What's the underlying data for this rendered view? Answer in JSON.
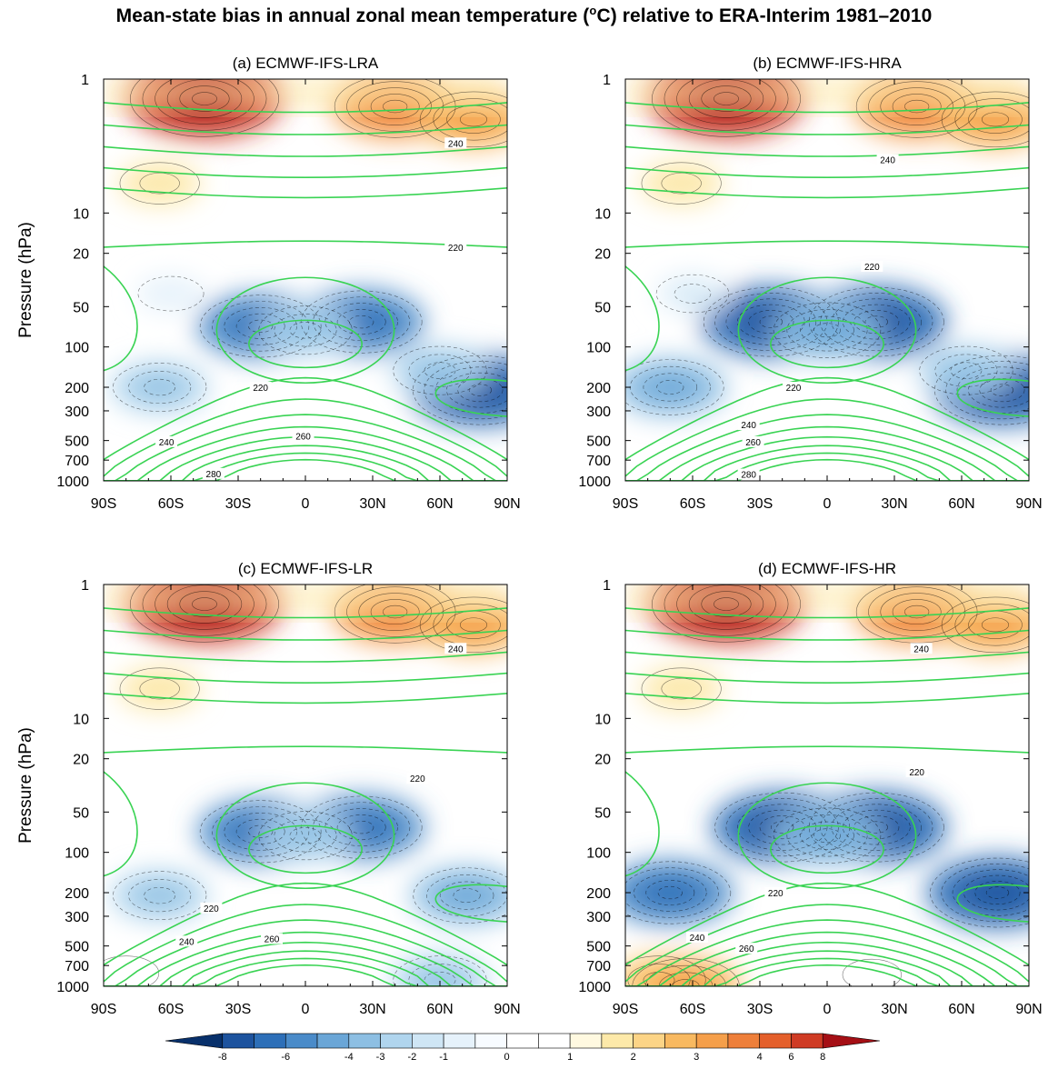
{
  "figure": {
    "title_prefix": "Mean-state bias in annual zonal mean temperature (",
    "title_degree": "o",
    "title_suffix": "C) relative to ERA-Interim 1981–2010"
  },
  "chart_data": [
    {
      "type": "heatmap",
      "panel_letter": "(a)",
      "title": "ECMWF-IFS-LRA",
      "xlabel": "",
      "ylabel": "Pressure (hPa)",
      "x_ticks": [
        "90S",
        "60S",
        "30S",
        "0",
        "30N",
        "60N",
        "90N"
      ],
      "x_tick_values": [
        -90,
        -60,
        -30,
        0,
        30,
        60,
        90
      ],
      "y_ticks": [
        "1",
        "10",
        "20",
        "50",
        "100",
        "200",
        "300",
        "500",
        "700",
        "1000"
      ],
      "y_tick_values": [
        1,
        10,
        20,
        50,
        100,
        200,
        300,
        500,
        700,
        1000
      ],
      "y_scale": "log",
      "xlim": [
        -90,
        90
      ],
      "ylim": [
        1000,
        1
      ],
      "contour_labels": [
        {
          "text": "240",
          "lat": 67,
          "p": 3
        },
        {
          "text": "220",
          "lat": 67,
          "p": 18
        },
        {
          "text": "220",
          "lat": -20,
          "p": 200
        },
        {
          "text": "260",
          "lat": -1,
          "p": 460
        },
        {
          "text": "240",
          "lat": -62,
          "p": 510
        },
        {
          "text": "280",
          "lat": -41,
          "p": 880
        }
      ],
      "bias_features": [
        {
          "lat": -45,
          "p": 1.4,
          "value": 7
        },
        {
          "lat": 40,
          "p": 1.6,
          "value": 5
        },
        {
          "lat": 75,
          "p": 2.0,
          "value": 4
        },
        {
          "lat": -65,
          "p": 6,
          "value": 2
        },
        {
          "lat": -20,
          "p": 70,
          "value": -5
        },
        {
          "lat": 25,
          "p": 65,
          "value": -5
        },
        {
          "lat": 0,
          "p": 75,
          "value": -3
        },
        {
          "lat": -65,
          "p": 200,
          "value": -3
        },
        {
          "lat": 78,
          "p": 210,
          "value": -6
        },
        {
          "lat": 60,
          "p": 150,
          "value": -3
        },
        {
          "lat": -60,
          "p": 40,
          "value": -1
        }
      ]
    },
    {
      "type": "heatmap",
      "panel_letter": "(b)",
      "title": "ECMWF-IFS-HRA",
      "xlabel": "",
      "ylabel": "",
      "x_ticks": [
        "90S",
        "60S",
        "30S",
        "0",
        "30N",
        "60N",
        "90N"
      ],
      "x_tick_values": [
        -90,
        -60,
        -30,
        0,
        30,
        60,
        90
      ],
      "y_ticks": [
        "1",
        "10",
        "20",
        "50",
        "100",
        "200",
        "300",
        "500",
        "700",
        "1000"
      ],
      "y_tick_values": [
        1,
        10,
        20,
        50,
        100,
        200,
        300,
        500,
        700,
        1000
      ],
      "y_scale": "log",
      "xlim": [
        -90,
        90
      ],
      "ylim": [
        1000,
        1
      ],
      "contour_labels": [
        {
          "text": "240",
          "lat": 27,
          "p": 4
        },
        {
          "text": "220",
          "lat": 20,
          "p": 25
        },
        {
          "text": "220",
          "lat": -15,
          "p": 200
        },
        {
          "text": "240",
          "lat": -35,
          "p": 380
        },
        {
          "text": "260",
          "lat": -33,
          "p": 510
        },
        {
          "text": "280",
          "lat": -35,
          "p": 890
        }
      ],
      "bias_features": [
        {
          "lat": -45,
          "p": 1.4,
          "value": 7
        },
        {
          "lat": 40,
          "p": 1.6,
          "value": 5
        },
        {
          "lat": 75,
          "p": 2.0,
          "value": 4
        },
        {
          "lat": -65,
          "p": 6,
          "value": 2
        },
        {
          "lat": -25,
          "p": 65,
          "value": -6
        },
        {
          "lat": 22,
          "p": 65,
          "value": -6
        },
        {
          "lat": 0,
          "p": 75,
          "value": -4
        },
        {
          "lat": -70,
          "p": 200,
          "value": -4
        },
        {
          "lat": 78,
          "p": 210,
          "value": -6
        },
        {
          "lat": 62,
          "p": 150,
          "value": -3
        },
        {
          "lat": -60,
          "p": 40,
          "value": -1.5
        }
      ]
    },
    {
      "type": "heatmap",
      "panel_letter": "(c)",
      "title": "ECMWF-IFS-LR",
      "xlabel": "",
      "ylabel": "Pressure (hPa)",
      "x_ticks": [
        "90S",
        "60S",
        "30S",
        "0",
        "30N",
        "60N",
        "90N"
      ],
      "x_tick_values": [
        -90,
        -60,
        -30,
        0,
        30,
        60,
        90
      ],
      "y_ticks": [
        "1",
        "10",
        "20",
        "50",
        "100",
        "200",
        "300",
        "500",
        "700",
        "1000"
      ],
      "y_tick_values": [
        1,
        10,
        20,
        50,
        100,
        200,
        300,
        500,
        700,
        1000
      ],
      "y_scale": "log",
      "xlim": [
        -90,
        90
      ],
      "ylim": [
        1000,
        1
      ],
      "contour_labels": [
        {
          "text": "240",
          "lat": 67,
          "p": 3
        },
        {
          "text": "220",
          "lat": 50,
          "p": 28
        },
        {
          "text": "220",
          "lat": -42,
          "p": 260
        },
        {
          "text": "240",
          "lat": -53,
          "p": 460
        },
        {
          "text": "260",
          "lat": -15,
          "p": 440
        }
      ],
      "bias_features": [
        {
          "lat": -45,
          "p": 1.4,
          "value": 7
        },
        {
          "lat": 40,
          "p": 1.6,
          "value": 5
        },
        {
          "lat": 75,
          "p": 2.0,
          "value": 4
        },
        {
          "lat": -65,
          "p": 6,
          "value": 2
        },
        {
          "lat": -20,
          "p": 70,
          "value": -5
        },
        {
          "lat": 25,
          "p": 65,
          "value": -5
        },
        {
          "lat": 0,
          "p": 75,
          "value": -3
        },
        {
          "lat": -65,
          "p": 210,
          "value": -3
        },
        {
          "lat": 72,
          "p": 210,
          "value": -4
        },
        {
          "lat": 60,
          "p": 900,
          "value": -3
        },
        {
          "lat": -80,
          "p": 800,
          "value": 1
        }
      ]
    },
    {
      "type": "heatmap",
      "panel_letter": "(d)",
      "title": "ECMWF-IFS-HR",
      "xlabel": "",
      "ylabel": "",
      "x_ticks": [
        "90S",
        "60S",
        "30S",
        "0",
        "30N",
        "60N",
        "90N"
      ],
      "x_tick_values": [
        -90,
        -60,
        -30,
        0,
        30,
        60,
        90
      ],
      "y_ticks": [
        "1",
        "10",
        "20",
        "50",
        "100",
        "200",
        "300",
        "500",
        "700",
        "1000"
      ],
      "y_tick_values": [
        1,
        10,
        20,
        50,
        100,
        200,
        300,
        500,
        700,
        1000
      ],
      "y_scale": "log",
      "xlim": [
        -90,
        90
      ],
      "ylim": [
        1000,
        1
      ],
      "contour_labels": [
        {
          "text": "240",
          "lat": 42,
          "p": 3
        },
        {
          "text": "220",
          "lat": 40,
          "p": 25
        },
        {
          "text": "220",
          "lat": -23,
          "p": 200
        },
        {
          "text": "240",
          "lat": -58,
          "p": 430
        },
        {
          "text": "260",
          "lat": -36,
          "p": 520
        }
      ],
      "bias_features": [
        {
          "lat": -45,
          "p": 1.4,
          "value": 7
        },
        {
          "lat": 40,
          "p": 1.6,
          "value": 5
        },
        {
          "lat": 75,
          "p": 2.0,
          "value": 4
        },
        {
          "lat": -65,
          "p": 6,
          "value": 2
        },
        {
          "lat": -20,
          "p": 65,
          "value": -6
        },
        {
          "lat": 22,
          "p": 65,
          "value": -6
        },
        {
          "lat": 0,
          "p": 75,
          "value": -4
        },
        {
          "lat": -70,
          "p": 200,
          "value": -5
        },
        {
          "lat": 76,
          "p": 200,
          "value": -6
        },
        {
          "lat": -75,
          "p": 900,
          "value": 3
        },
        {
          "lat": -63,
          "p": 1000,
          "value": 4
        },
        {
          "lat": 20,
          "p": 820,
          "value": 0.5
        }
      ]
    }
  ],
  "colorbar": {
    "labels": [
      "-8",
      "-6",
      "-4",
      "-3",
      "-2",
      "-1",
      "0",
      "1",
      "2",
      "3",
      "4",
      "6",
      "8"
    ],
    "colors": [
      "#08306b",
      "#1d539e",
      "#2d6fb8",
      "#4a8bc9",
      "#6aa6d7",
      "#8dbfe3",
      "#b0d5ee",
      "#cfe6f5",
      "#e6f2fb",
      "#f7fbff",
      "#ffffff",
      "#ffffff",
      "#fff9e0",
      "#fde9a9",
      "#fcd486",
      "#f8b960",
      "#f59f4a",
      "#ee7f3a",
      "#e45f2b",
      "#cf3b24",
      "#a50f15"
    ]
  },
  "colors": {
    "climatology_contour": "#39d353",
    "bias_contour": "#000000"
  }
}
